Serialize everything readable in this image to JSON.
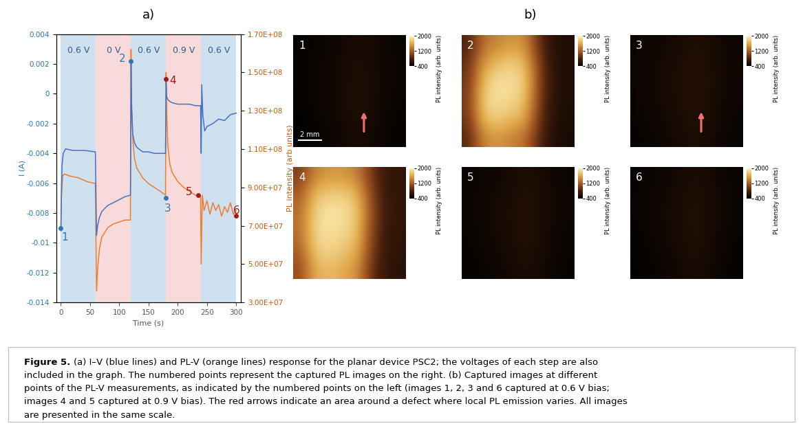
{
  "chart_data": {
    "type": "line",
    "panel": "a)",
    "xlabel": "Time (s)",
    "ylabel": "I (A)",
    "y2label": "PL intensity (arb units)",
    "xlim": [
      -8,
      308
    ],
    "xticks": [
      0,
      50,
      100,
      150,
      200,
      250,
      300
    ],
    "ylim": [
      -0.014,
      0.004
    ],
    "yticks": [
      -0.014,
      -0.012,
      -0.01,
      -0.008,
      -0.006,
      -0.004,
      -0.002,
      0,
      0.002,
      0.004
    ],
    "y2lim": [
      30000000,
      170000000
    ],
    "y2ticks": [
      {
        "value": 30000000,
        "label": "3.00E+07"
      },
      {
        "value": 50000000,
        "label": "5.00E+07"
      },
      {
        "value": 70000000,
        "label": "7.00E+07"
      },
      {
        "value": 90000000,
        "label": "9.00E+07"
      },
      {
        "value": 110000000,
        "label": "1.10E+08"
      },
      {
        "value": 130000000,
        "label": "1.30E+08"
      },
      {
        "value": 150000000,
        "label": "1.50E+08"
      },
      {
        "value": 170000000,
        "label": "1.70E+08"
      }
    ],
    "grid": false,
    "steps": [
      {
        "start": 0,
        "end": 60,
        "label": "0.6 V",
        "color": "#cfe0ef"
      },
      {
        "start": 60,
        "end": 120,
        "label": "0 V",
        "color": "#f9dada"
      },
      {
        "start": 120,
        "end": 180,
        "label": "0.6 V",
        "color": "#cfe0ef"
      },
      {
        "start": 180,
        "end": 240,
        "label": "0.9 V",
        "color": "#f9dada"
      },
      {
        "start": 240,
        "end": 300,
        "label": "0.6 V",
        "color": "#cfe0ef"
      }
    ],
    "series": [
      {
        "color": "#4472c4",
        "x": [
          0,
          1,
          2,
          4,
          8,
          20,
          40,
          59,
          61,
          63,
          66,
          70,
          80,
          90,
          100,
          110,
          119,
          120,
          121,
          123,
          126,
          130,
          140,
          150,
          160,
          170,
          179,
          180,
          181,
          183,
          186,
          190,
          200,
          210,
          220,
          230,
          239,
          240,
          241,
          243,
          246,
          250,
          260,
          270,
          280,
          290,
          300
        ],
        "values": [
          -0.0092,
          -0.0065,
          -0.0048,
          -0.004,
          -0.0037,
          -0.0038,
          -0.0038,
          -0.0039,
          -0.0095,
          -0.0088,
          -0.0083,
          -0.0079,
          -0.0075,
          -0.0073,
          -0.0071,
          -0.0069,
          -0.0068,
          0.0022,
          -0.001,
          -0.0027,
          -0.0033,
          -0.0036,
          -0.0039,
          -0.0039,
          -0.004,
          -0.004,
          -0.004,
          0.0008,
          -0.0002,
          -0.0004,
          -0.0005,
          -0.0006,
          -0.0007,
          -0.0007,
          -0.0007,
          -0.0008,
          -0.0008,
          -0.004,
          0.0006,
          -0.0015,
          -0.0025,
          -0.0022,
          -0.002,
          -0.0017,
          -0.0018,
          -0.0014,
          -0.0013
        ]
      },
      {
        "color": "#ed7d31",
        "axis": "y2",
        "x": [
          0,
          1,
          3,
          6,
          15,
          30,
          45,
          59,
          61,
          63,
          66,
          70,
          80,
          90,
          100,
          110,
          119,
          120,
          121,
          123,
          126,
          130,
          140,
          150,
          160,
          170,
          179,
          180,
          181,
          183,
          186,
          190,
          200,
          210,
          220,
          230,
          239,
          240,
          242,
          245,
          250,
          255,
          260,
          265,
          270,
          275,
          280,
          285,
          290,
          295,
          300
        ],
        "values": [
          69000000,
          85000000,
          96000000,
          97000000,
          96000000,
          95000000,
          93000000,
          92000000,
          36000000,
          48000000,
          58000000,
          64000000,
          69000000,
          71000000,
          72000000,
          73000000,
          73000000,
          162000000,
          135000000,
          115000000,
          105000000,
          100000000,
          95000000,
          92000000,
          90000000,
          88000000,
          86000000,
          150000000,
          130000000,
          112000000,
          103000000,
          98000000,
          93000000,
          90000000,
          88000000,
          86000000,
          85000000,
          50000000,
          86000000,
          78000000,
          83000000,
          76000000,
          82000000,
          78000000,
          81000000,
          75000000,
          80000000,
          77000000,
          82000000,
          76000000,
          78000000
        ]
      }
    ],
    "points": {
      "x": [
        0,
        120,
        180,
        180,
        235,
        300
      ],
      "values": [
        -0.009,
        0.0022,
        -0.007,
        0.001,
        -0.0068,
        -0.0082
      ],
      "labels": [
        "1",
        "2",
        "3",
        "4",
        "5",
        "6"
      ],
      "colors": [
        "#2e75b6",
        "#2e75b6",
        "#2e75b6",
        "#9b1c1c",
        "#9b1c1c",
        "#9b1c1c"
      ]
    }
  },
  "panel_b": {
    "label": "b)",
    "colorbar": {
      "label": "PL intensity (arb. units)",
      "range": [
        400,
        2000
      ],
      "ticks": [
        400,
        1200,
        2000
      ]
    },
    "scale_bar": "2 mm",
    "images": [
      {
        "label": "1",
        "arrow": true,
        "cells": [
          [
            430,
            450,
            470,
            500,
            540,
            520,
            480,
            450
          ],
          [
            440,
            460,
            480,
            510,
            560,
            530,
            490,
            460
          ],
          [
            440,
            460,
            490,
            520,
            570,
            540,
            490,
            460
          ],
          [
            430,
            460,
            490,
            520,
            580,
            540,
            480,
            450
          ],
          [
            420,
            450,
            480,
            510,
            570,
            530,
            470,
            440
          ],
          [
            410,
            430,
            460,
            490,
            540,
            510,
            460,
            430
          ]
        ]
      },
      {
        "label": "2",
        "arrow": false,
        "cells": [
          [
            800,
            1300,
            1400,
            1500,
            1450,
            900,
            600,
            560
          ],
          [
            900,
            1500,
            1700,
            1800,
            1700,
            1000,
            620,
            570
          ],
          [
            950,
            1700,
            1900,
            1900,
            1800,
            1050,
            630,
            570
          ],
          [
            1000,
            1800,
            1900,
            1850,
            1750,
            1000,
            620,
            560
          ],
          [
            950,
            1700,
            1800,
            1700,
            1600,
            950,
            600,
            550
          ],
          [
            850,
            1400,
            1500,
            1400,
            1300,
            850,
            570,
            530
          ]
        ]
      },
      {
        "label": "3",
        "arrow": true,
        "cells": [
          [
            460,
            480,
            500,
            530,
            570,
            550,
            500,
            470
          ],
          [
            470,
            490,
            520,
            550,
            590,
            560,
            510,
            480
          ],
          [
            470,
            500,
            530,
            560,
            600,
            570,
            510,
            480
          ],
          [
            460,
            490,
            520,
            550,
            600,
            560,
            500,
            470
          ],
          [
            450,
            480,
            510,
            540,
            590,
            550,
            490,
            460
          ],
          [
            440,
            460,
            490,
            520,
            560,
            530,
            480,
            450
          ]
        ]
      },
      {
        "label": "4",
        "arrow": false,
        "cells": [
          [
            1000,
            1400,
            1500,
            1500,
            1400,
            1000,
            700,
            650
          ],
          [
            1200,
            1700,
            1800,
            1800,
            1700,
            1100,
            720,
            660
          ],
          [
            1300,
            1800,
            1950,
            1900,
            1800,
            1150,
            730,
            660
          ],
          [
            1300,
            1850,
            1900,
            1850,
            1750,
            1100,
            720,
            650
          ],
          [
            1200,
            1750,
            1850,
            1750,
            1650,
            1050,
            700,
            640
          ],
          [
            1100,
            1600,
            1700,
            1600,
            1500,
            950,
            680,
            620
          ]
        ]
      },
      {
        "label": "5",
        "arrow": false,
        "cells": [
          [
            450,
            470,
            490,
            520,
            560,
            540,
            490,
            460
          ],
          [
            460,
            480,
            510,
            540,
            580,
            550,
            500,
            470
          ],
          [
            460,
            490,
            520,
            550,
            590,
            560,
            500,
            470
          ],
          [
            450,
            480,
            510,
            540,
            590,
            550,
            490,
            460
          ],
          [
            440,
            470,
            500,
            530,
            580,
            540,
            480,
            450
          ],
          [
            430,
            450,
            480,
            510,
            550,
            520,
            470,
            440
          ]
        ]
      },
      {
        "label": "6",
        "arrow": false,
        "cells": [
          [
            440,
            460,
            480,
            510,
            550,
            530,
            480,
            450
          ],
          [
            450,
            470,
            500,
            530,
            570,
            540,
            490,
            460
          ],
          [
            450,
            480,
            510,
            540,
            580,
            550,
            490,
            460
          ],
          [
            440,
            470,
            500,
            530,
            580,
            540,
            480,
            450
          ],
          [
            430,
            460,
            490,
            520,
            570,
            530,
            470,
            440
          ],
          [
            420,
            440,
            470,
            500,
            540,
            510,
            460,
            430
          ]
        ]
      }
    ]
  },
  "caption": {
    "label": "Figure 5.",
    "lines": [
      "(a) I–V (blue lines) and PL-V (orange lines) response for the planar device PSC2; the voltages of each step are also",
      "included in the graph. The numbered points represent the captured PL images on the right. (b) Captured images at different",
      "points of the PL-V measurements, as indicated by the numbered points on the left (images 1, 2, 3 and 6 captured at 0.6 V bias;",
      "images 4 and 5 captured at 0.9 V bias). The red arrows indicate an area around a defect where local PL emission varies. All images",
      "are presented in the same scale."
    ]
  }
}
